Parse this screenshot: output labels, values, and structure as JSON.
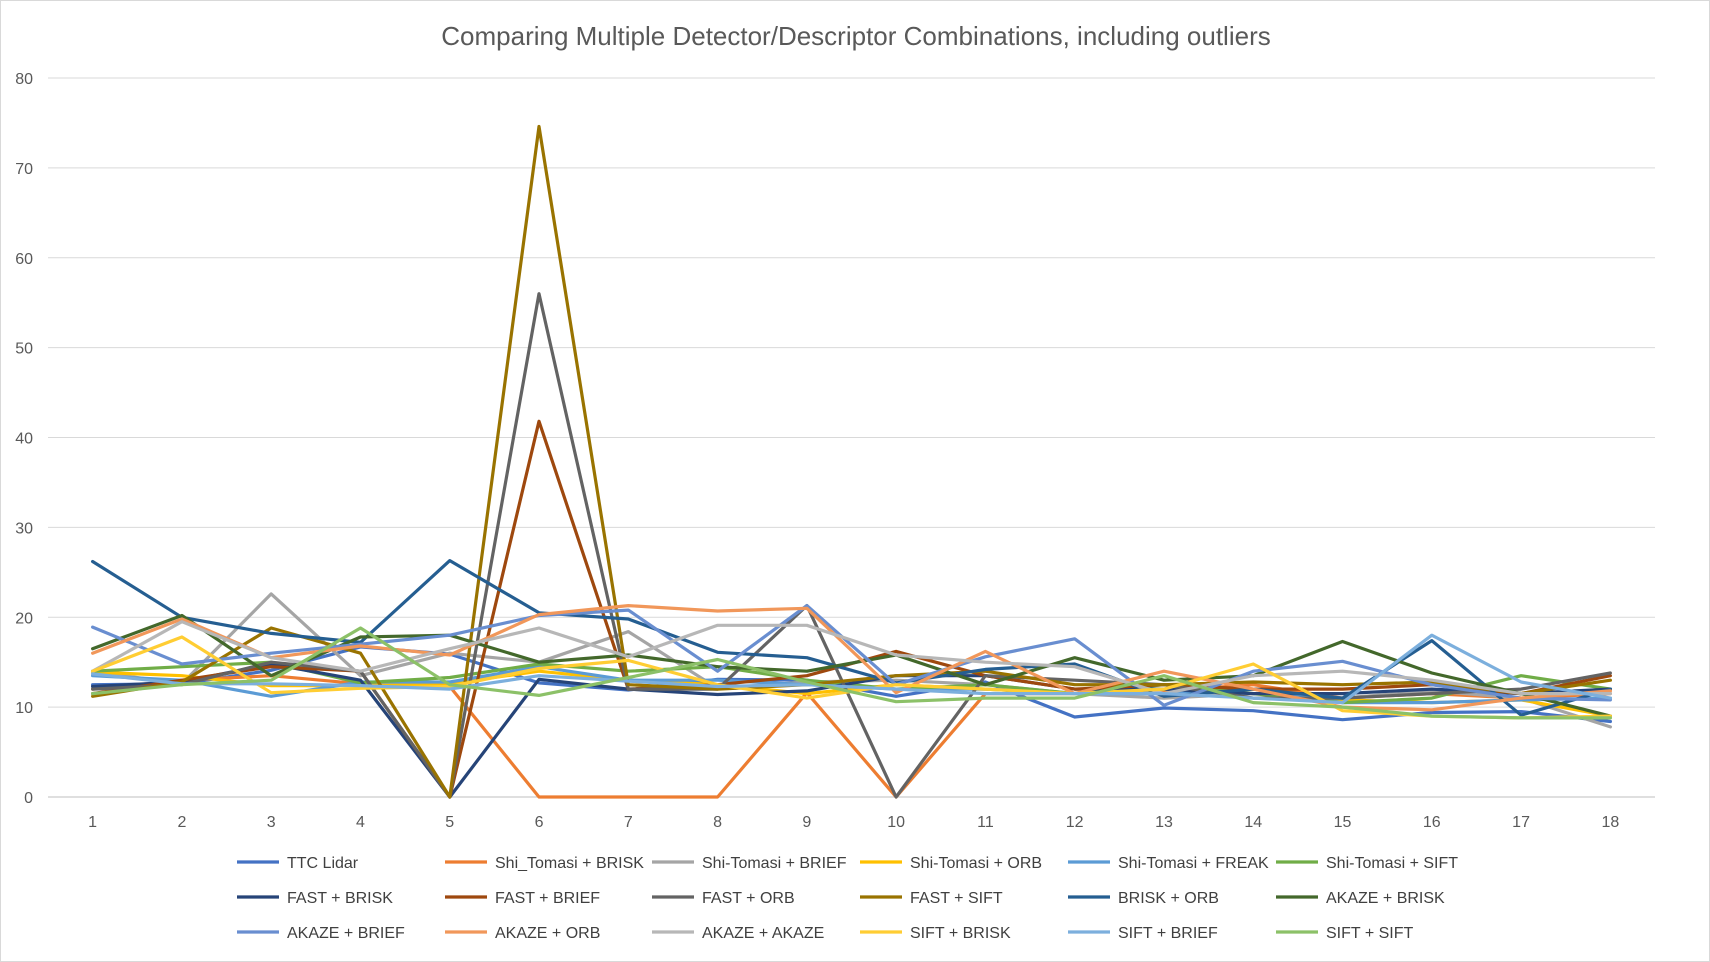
{
  "chart_data": {
    "type": "line",
    "title": "Comparing Multiple Detector/Descriptor Combinations, including outliers",
    "xlabel": "",
    "ylabel": "",
    "categories": [
      "1",
      "2",
      "3",
      "4",
      "5",
      "6",
      "7",
      "8",
      "9",
      "10",
      "11",
      "12",
      "13",
      "14",
      "15",
      "16",
      "17",
      "18"
    ],
    "ylim": [
      0,
      80
    ],
    "yticks": [
      0,
      10,
      20,
      30,
      40,
      50,
      60,
      70,
      80
    ],
    "grid": true,
    "legend_position": "bottom",
    "series": [
      {
        "name": "TTC Lidar",
        "color": "#4472C4",
        "values": [
          12.5,
          12.6,
          14.1,
          16.7,
          15.9,
          12.7,
          11.9,
          13.1,
          13.0,
          11.2,
          12.8,
          8.9,
          9.9,
          9.6,
          8.6,
          9.4,
          9.5,
          8.4
        ]
      },
      {
        "name": "Shi_Tomasi + BRISK",
        "color": "#ED7D31",
        "values": [
          12.0,
          13.0,
          13.5,
          12.6,
          12.3,
          0,
          0,
          0,
          11.6,
          0,
          11.5,
          11.5,
          11.8,
          12.5,
          11.0,
          11.5,
          11.0,
          11.5
        ]
      },
      {
        "name": "Shi-Tomasi + BRIEF",
        "color": "#A5A5A5",
        "values": [
          14.0,
          12.6,
          22.6,
          13.5,
          16.0,
          15.0,
          18.4,
          12.1,
          12.8,
          13.0,
          12.5,
          11.5,
          11.0,
          11.5,
          11.0,
          11.8,
          11.0,
          7.8
        ]
      },
      {
        "name": "Shi-Tomasi + ORB",
        "color": "#FFC000",
        "values": [
          13.9,
          13.5,
          12.4,
          12.4,
          12.6,
          14.0,
          13.0,
          12.5,
          11.5,
          12.5,
          12.0,
          11.5,
          12.0,
          12.0,
          10.8,
          10.5,
          10.8,
          9.0
        ]
      },
      {
        "name": "Shi-Tomasi + FREAK",
        "color": "#5B9BD5",
        "values": [
          13.5,
          13.0,
          11.2,
          12.8,
          12.8,
          14.5,
          13.0,
          13.0,
          12.5,
          12.0,
          12.0,
          11.5,
          11.5,
          12.0,
          10.5,
          10.5,
          10.8,
          11.0
        ]
      },
      {
        "name": "Shi-Tomasi + SIFT",
        "color": "#70AD47",
        "values": [
          14.0,
          14.5,
          15.0,
          12.7,
          13.3,
          14.8,
          14.0,
          14.5,
          13.0,
          12.0,
          12.5,
          11.5,
          12.5,
          11.5,
          10.5,
          11.0,
          13.5,
          12.0
        ]
      },
      {
        "name": "FAST + BRISK",
        "color": "#264478",
        "values": [
          12.3,
          12.8,
          14.8,
          13.0,
          0,
          13.1,
          12.0,
          11.4,
          11.8,
          13.5,
          13.5,
          12.0,
          12.0,
          11.5,
          11.5,
          12.0,
          11.5,
          12.0
        ]
      },
      {
        "name": "FAST + BRIEF",
        "color": "#9E480E",
        "values": [
          11.5,
          13.0,
          14.5,
          14.0,
          0,
          41.8,
          12.0,
          12.5,
          13.5,
          16.2,
          13.5,
          12.0,
          12.5,
          12.0,
          12.0,
          12.5,
          11.5,
          13.5
        ]
      },
      {
        "name": "FAST + ORB",
        "color": "#636363",
        "values": [
          12.0,
          12.5,
          15.0,
          14.0,
          0,
          56.0,
          12.0,
          12.0,
          21.3,
          0,
          13.5,
          13.0,
          12.5,
          11.0,
          11.0,
          11.5,
          12.0,
          13.8
        ]
      },
      {
        "name": "FAST + SIFT",
        "color": "#997300",
        "values": [
          11.2,
          12.8,
          18.8,
          16.0,
          0,
          74.6,
          12.5,
          12.0,
          12.5,
          13.5,
          14.0,
          12.5,
          12.5,
          12.8,
          12.5,
          12.8,
          11.5,
          13.0
        ]
      },
      {
        "name": "BRISK + ORB",
        "color": "#255E91",
        "values": [
          26.2,
          20.0,
          18.2,
          17.2,
          26.3,
          20.5,
          19.8,
          16.1,
          15.5,
          12.7,
          14.2,
          14.8,
          11.2,
          12.0,
          11.0,
          17.4,
          9.1,
          12.0
        ]
      },
      {
        "name": "AKAZE + BRISK",
        "color": "#43682B",
        "values": [
          16.5,
          20.2,
          13.5,
          17.8,
          18.0,
          15.0,
          15.8,
          14.5,
          14.0,
          15.8,
          12.5,
          15.5,
          13.0,
          13.5,
          17.3,
          13.8,
          11.5,
          9.0
        ]
      },
      {
        "name": "AKAZE + BRIEF",
        "color": "#698ED0",
        "values": [
          18.9,
          14.8,
          16.0,
          17.0,
          18.0,
          20.2,
          20.8,
          14.0,
          21.3,
          12.5,
          15.6,
          17.6,
          10.2,
          14.0,
          15.1,
          12.5,
          11.0,
          10.8
        ]
      },
      {
        "name": "AKAZE + ORB",
        "color": "#F1975A",
        "values": [
          16.0,
          19.8,
          15.5,
          16.8,
          15.8,
          20.3,
          21.3,
          20.7,
          21.0,
          11.6,
          16.2,
          11.5,
          14.0,
          12.0,
          10.0,
          9.7,
          11.0,
          11.8
        ]
      },
      {
        "name": "AKAZE + AKAZE",
        "color": "#B7B7B7",
        "values": [
          14.0,
          19.5,
          15.5,
          14.0,
          16.5,
          18.8,
          15.6,
          19.1,
          19.1,
          15.8,
          15.0,
          14.5,
          11.5,
          13.5,
          14.0,
          13.0,
          11.5,
          11.5
        ]
      },
      {
        "name": "SIFT + BRISK",
        "color": "#FFCD33",
        "values": [
          14.0,
          17.8,
          11.6,
          12.1,
          12.3,
          14.3,
          15.2,
          12.5,
          11.0,
          12.5,
          12.0,
          11.5,
          12.0,
          14.8,
          9.6,
          9.0,
          8.8,
          9.0
        ]
      },
      {
        "name": "SIFT + BRIEF",
        "color": "#7CAFDD",
        "values": [
          13.7,
          12.6,
          12.6,
          12.4,
          12.0,
          13.5,
          12.9,
          12.3,
          12.5,
          12.0,
          11.5,
          11.5,
          11.5,
          11.0,
          10.5,
          18.0,
          12.8,
          11.0
        ]
      },
      {
        "name": "SIFT + SIFT",
        "color": "#8CC168",
        "values": [
          11.5,
          12.5,
          13.0,
          18.8,
          12.5,
          11.3,
          13.3,
          15.3,
          12.8,
          10.6,
          11.0,
          11.0,
          13.5,
          10.5,
          10.0,
          9.0,
          8.8,
          8.8
        ]
      }
    ]
  }
}
